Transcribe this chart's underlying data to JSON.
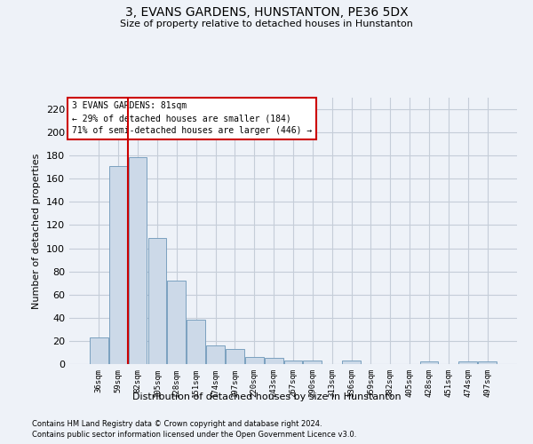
{
  "title": "3, EVANS GARDENS, HUNSTANTON, PE36 5DX",
  "subtitle": "Size of property relative to detached houses in Hunstanton",
  "xlabel": "Distribution of detached houses by size in Hunstanton",
  "ylabel": "Number of detached properties",
  "footnote1": "Contains HM Land Registry data © Crown copyright and database right 2024.",
  "footnote2": "Contains public sector information licensed under the Open Government Licence v3.0.",
  "categories": [
    "36sqm",
    "59sqm",
    "82sqm",
    "105sqm",
    "128sqm",
    "151sqm",
    "174sqm",
    "197sqm",
    "220sqm",
    "243sqm",
    "267sqm",
    "290sqm",
    "313sqm",
    "336sqm",
    "359sqm",
    "382sqm",
    "405sqm",
    "428sqm",
    "451sqm",
    "474sqm",
    "497sqm"
  ],
  "values": [
    23,
    171,
    179,
    109,
    72,
    38,
    16,
    13,
    6,
    5,
    3,
    3,
    0,
    3,
    0,
    0,
    0,
    2,
    0,
    2,
    2
  ],
  "bar_color": "#ccd9e8",
  "bar_edge_color": "#7aa0bf",
  "grid_color": "#c5cdd8",
  "background_color": "#eef2f8",
  "annotation_line1": "3 EVANS GARDENS: 81sqm",
  "annotation_line2": "← 29% of detached houses are smaller (184)",
  "annotation_line3": "71% of semi-detached houses are larger (446) →",
  "annotation_box_color": "white",
  "annotation_box_edge": "#cc0000",
  "red_line_x": 1.5,
  "ylim": [
    0,
    230
  ],
  "yticks": [
    0,
    20,
    40,
    60,
    80,
    100,
    120,
    140,
    160,
    180,
    200,
    220
  ]
}
